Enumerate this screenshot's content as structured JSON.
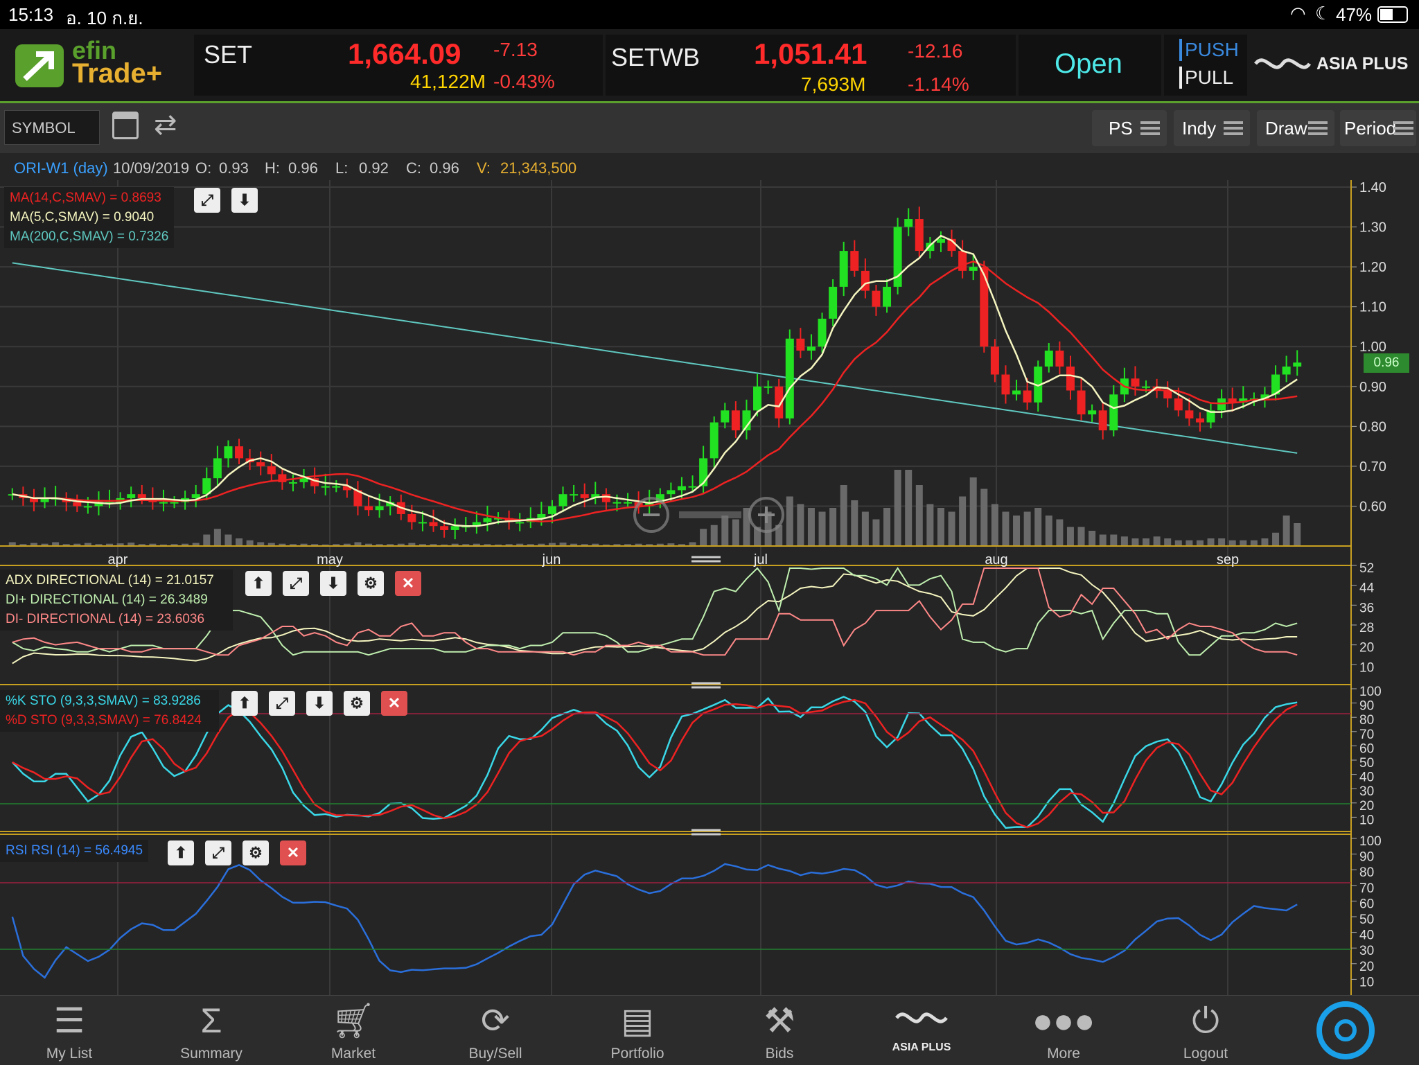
{
  "status_bar": {
    "time": "15:13",
    "date": "อ. 10 ก.ย.",
    "battery": "47%"
  },
  "header": {
    "logo_line1": "efin",
    "logo_line2": "Trade+",
    "set": {
      "name": "SET",
      "value": "1,664.09",
      "change": "-7.13",
      "volume": "41,122M",
      "pct": "-0.43%"
    },
    "setwb": {
      "name": "SETWB",
      "value": "1,051.41",
      "change": "-12.16",
      "volume": "7,693M",
      "pct": "-1.14%"
    },
    "market_status": "Open",
    "push": "PUSH",
    "pull": "PULL",
    "brand": "ASIA PLUS"
  },
  "toolbar": {
    "symbol_placeholder": "SYMBOL",
    "ps": "PS",
    "indy": "Indy",
    "draw": "Draw",
    "period": "Period"
  },
  "info": {
    "symbol": "ORI-W1 (day)",
    "date": "10/09/2019",
    "o_label": "O:",
    "o": "0.93",
    "h_label": "H:",
    "h": "0.96",
    "l_label": "L:",
    "l": "0.92",
    "c_label": "C:",
    "c": "0.96",
    "v_label": "V:",
    "v": "21,343,500"
  },
  "price_legend": {
    "ma14": "MA(14,C,SMAV) = 0.8693",
    "ma5": "MA(5,C,SMAV) = 0.9040",
    "ma200": "MA(200,C,SMAV) = 0.7326"
  },
  "adx_legend": {
    "adx": "ADX DIRECTIONAL (14) = 21.0157",
    "dip": "DI+ DIRECTIONAL (14) = 26.3489",
    "dim": "DI- DIRECTIONAL (14) = 23.6036"
  },
  "sto_legend": {
    "k": "%K STO (9,3,3,SMAV) = 83.9286",
    "d": "%D STO (9,3,3,SMAV) = 76.8424"
  },
  "rsi_legend": {
    "rsi": "RSI RSI (14) = 56.4945"
  },
  "last_price_tag": "0.96",
  "colors": {
    "up": "#22e022",
    "down": "#ee2222",
    "ma14": "#ee2222",
    "ma5": "#f5f5c0",
    "ma200": "#5fc8c0",
    "sto_k": "#3ad8e8",
    "rsi": "#2a6fdc",
    "gold": "#c8a020"
  },
  "chart_data": [
    {
      "type": "candlestick",
      "x_labels": [
        "apr",
        "may",
        "jun",
        "jul",
        "aug",
        "sep"
      ],
      "y_ticks": [
        "1.40",
        "1.30",
        "1.20",
        "1.10",
        "1.00",
        "0.90",
        "0.80",
        "0.70",
        "0.60"
      ],
      "ylim": [
        0.5,
        1.4
      ],
      "series": [
        {
          "name": "MA(14,C,SMAV)"
        },
        {
          "name": "MA(5,C,SMAV)"
        },
        {
          "name": "MA(200,C,SMAV)"
        }
      ],
      "close": [
        0.63,
        0.62,
        0.61,
        0.62,
        0.62,
        0.61,
        0.6,
        0.6,
        0.61,
        0.61,
        0.62,
        0.63,
        0.62,
        0.61,
        0.61,
        0.61,
        0.62,
        0.63,
        0.67,
        0.72,
        0.75,
        0.72,
        0.71,
        0.7,
        0.68,
        0.66,
        0.66,
        0.67,
        0.65,
        0.65,
        0.65,
        0.64,
        0.6,
        0.59,
        0.6,
        0.61,
        0.58,
        0.56,
        0.56,
        0.55,
        0.54,
        0.55,
        0.55,
        0.56,
        0.57,
        0.57,
        0.56,
        0.56,
        0.57,
        0.58,
        0.6,
        0.63,
        0.63,
        0.62,
        0.63,
        0.61,
        0.61,
        0.61,
        0.6,
        0.61,
        0.63,
        0.64,
        0.65,
        0.65,
        0.72,
        0.81,
        0.84,
        0.79,
        0.84,
        0.9,
        0.9,
        0.82,
        1.02,
        0.99,
        1.0,
        1.07,
        1.15,
        1.24,
        1.19,
        1.14,
        1.1,
        1.15,
        1.3,
        1.32,
        1.24,
        1.26,
        1.27,
        1.24,
        1.19,
        1.2,
        1.0,
        0.93,
        0.88,
        0.89,
        0.86,
        0.95,
        0.99,
        0.95,
        0.89,
        0.83,
        0.84,
        0.79,
        0.88,
        0.92,
        0.9,
        0.9,
        0.89,
        0.87,
        0.84,
        0.82,
        0.81,
        0.84,
        0.87,
        0.86,
        0.87,
        0.87,
        0.88,
        0.93,
        0.95,
        0.96
      ],
      "volume_relative": [
        0.1,
        0.05,
        0.08,
        0.06,
        0.1,
        0.05,
        0.06,
        0.08,
        0.05,
        0.06,
        0.07,
        0.09,
        0.05,
        0.06,
        0.04,
        0.05,
        0.06,
        0.08,
        0.3,
        0.45,
        0.3,
        0.2,
        0.15,
        0.1,
        0.08,
        0.06,
        0.05,
        0.06,
        0.05,
        0.04,
        0.05,
        0.06,
        0.1,
        0.06,
        0.05,
        0.05,
        0.06,
        0.08,
        0.05,
        0.05,
        0.04,
        0.06,
        0.05,
        0.06,
        0.05,
        0.04,
        0.05,
        0.06,
        0.05,
        0.06,
        0.08,
        0.09,
        0.06,
        0.05,
        0.06,
        0.04,
        0.05,
        0.05,
        0.06,
        0.05,
        0.06,
        0.07,
        0.05,
        0.1,
        0.45,
        0.55,
        0.8,
        0.7,
        1.0,
        0.5,
        0.9,
        0.55,
        1.3,
        1.1,
        1.0,
        0.9,
        1.0,
        1.6,
        1.2,
        0.9,
        0.7,
        1.0,
        2.0,
        2.0,
        1.6,
        1.1,
        1.0,
        0.9,
        1.3,
        1.8,
        1.5,
        1.1,
        0.9,
        0.8,
        0.9,
        1.0,
        0.8,
        0.7,
        0.5,
        0.5,
        0.4,
        0.3,
        0.3,
        0.25,
        0.2,
        0.2,
        0.25,
        0.2,
        0.15,
        0.15,
        0.15,
        0.2,
        0.2,
        0.15,
        0.15,
        0.15,
        0.2,
        0.35,
        0.8,
        0.6
      ]
    },
    {
      "type": "line",
      "name": "ADX",
      "y_ticks": [
        "52",
        "44",
        "36",
        "28",
        "20",
        "10"
      ]
    },
    {
      "type": "line",
      "name": "STO",
      "y_ticks": [
        "100",
        "90",
        "80",
        "70",
        "60",
        "50",
        "40",
        "30",
        "20",
        "10"
      ]
    },
    {
      "type": "line",
      "name": "RSI",
      "y_ticks": [
        "100",
        "90",
        "80",
        "70",
        "60",
        "50",
        "40",
        "30",
        "20",
        "10"
      ]
    }
  ],
  "nav": [
    {
      "label": "My List",
      "icon": "list-icon"
    },
    {
      "label": "Summary",
      "icon": "sigma-icon"
    },
    {
      "label": "Market",
      "icon": "cart-icon"
    },
    {
      "label": "Buy/Sell",
      "icon": "buysell-icon"
    },
    {
      "label": "Portfolio",
      "icon": "portfolio-icon"
    },
    {
      "label": "Bids",
      "icon": "gavel-icon"
    },
    {
      "label": "ASIA PLUS",
      "icon": "asiaplus-icon"
    },
    {
      "label": "More",
      "icon": "more-icon"
    },
    {
      "label": "Logout",
      "icon": "power-icon"
    }
  ]
}
